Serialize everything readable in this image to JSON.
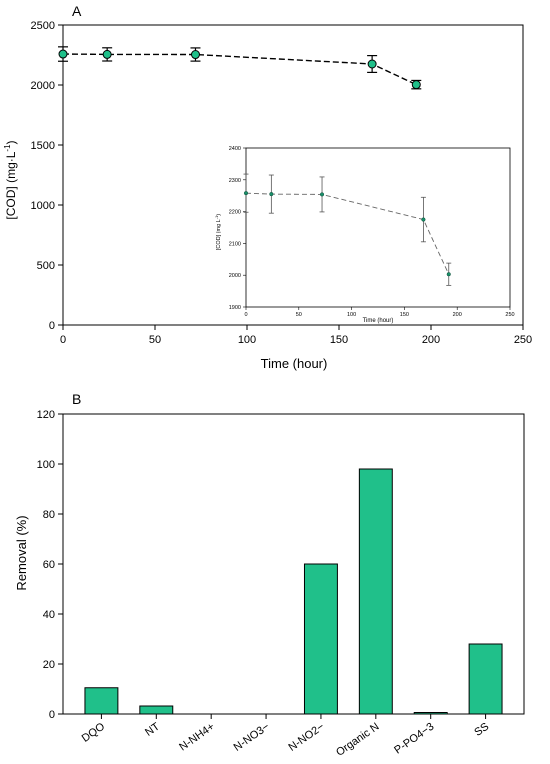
{
  "chart_data": [
    {
      "panel_label": "A",
      "type": "line",
      "xlabel": "Time (hour)",
      "ylabel": "[COD] (mg·L",
      "ylabel_sup": "-1",
      "ylabel_close": ")",
      "xlim": [
        0,
        250
      ],
      "ylim": [
        0,
        2500
      ],
      "xticks": [
        0,
        50,
        100,
        150,
        200,
        250
      ],
      "yticks": [
        0,
        500,
        1000,
        1500,
        2000,
        2500
      ],
      "grid": false,
      "series": [
        {
          "x": [
            0,
            24,
            72,
            168,
            192
          ],
          "y": [
            2258,
            2255,
            2254,
            2175,
            2003
          ],
          "err": [
            60,
            55,
            55,
            70,
            35
          ],
          "marker_color": "#20c08a",
          "line_style": "dashed"
        }
      ],
      "inset": {
        "xlabel": "Time (hour)",
        "ylabel": "[COD] (mg L",
        "ylabel_sup": "-1",
        "ylabel_close": ")",
        "xlim": [
          0,
          250
        ],
        "ylim": [
          1900,
          2400
        ],
        "xticks": [
          0,
          50,
          100,
          150,
          200,
          250
        ],
        "yticks": [
          1900,
          2000,
          2100,
          2200,
          2300,
          2400
        ],
        "series": [
          {
            "x": [
              0,
              24,
              72,
              168,
              192
            ],
            "y": [
              2258,
              2255,
              2254,
              2175,
              2003
            ],
            "err": [
              60,
              60,
              55,
              70,
              35
            ]
          }
        ]
      }
    },
    {
      "panel_label": "B",
      "type": "bar",
      "xlabel": "",
      "ylabel": "Removal (%)",
      "ylim": [
        0,
        120
      ],
      "yticks": [
        0,
        20,
        40,
        60,
        80,
        100,
        120
      ],
      "grid": false,
      "bar_color": "#20c08a",
      "categories": [
        "DQO",
        "NT",
        "N-NH4+",
        "N-NO3−",
        "N-NO2−",
        "Organic N",
        "P-PO4−3",
        "SS"
      ],
      "values": [
        10.5,
        3.2,
        0,
        0,
        60,
        98,
        0.6,
        28
      ]
    }
  ]
}
